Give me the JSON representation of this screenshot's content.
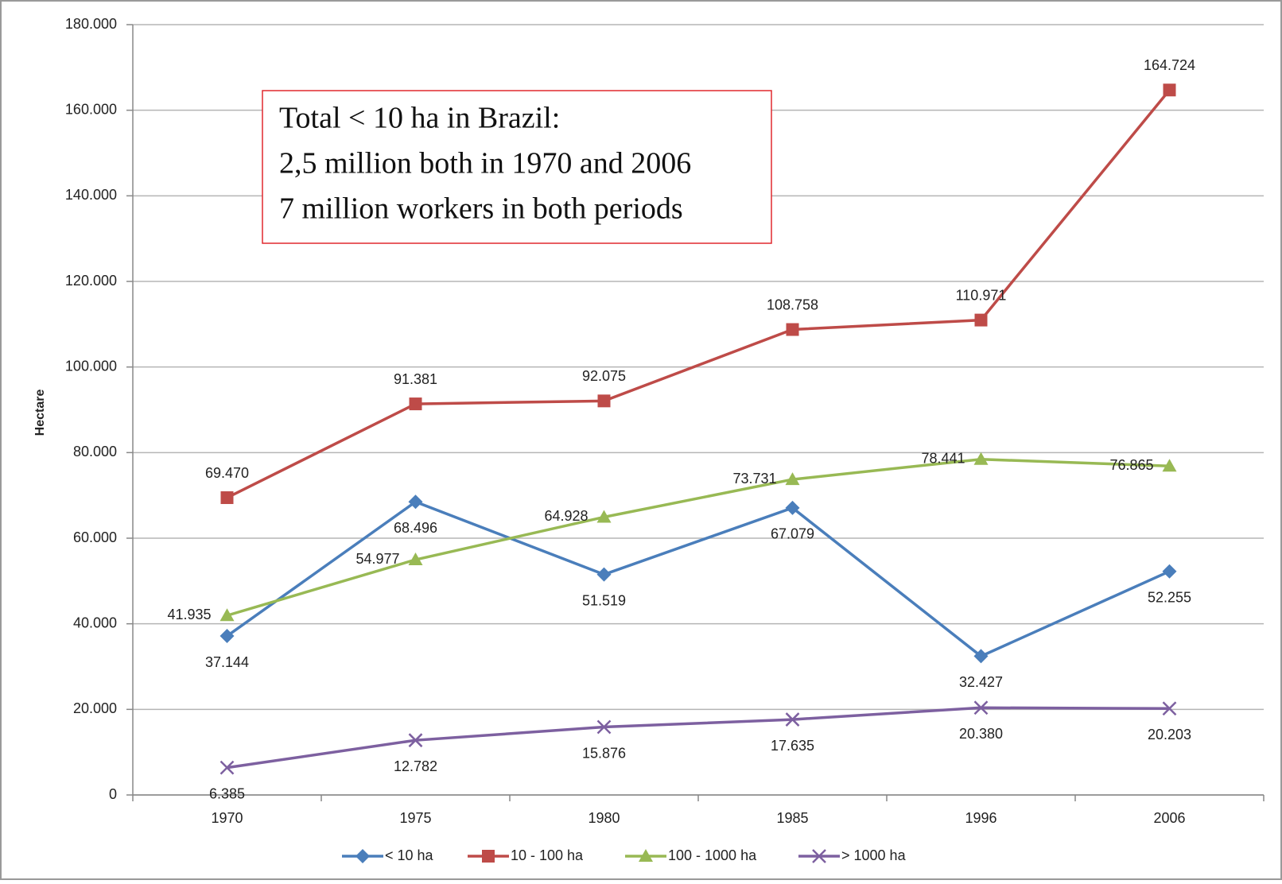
{
  "chart_data": {
    "type": "line",
    "y_label": "Hectare",
    "annotation": [
      "Total < 10 ha in Brazil:",
      "2,5 million both in 1970 and 2006",
      "7 million workers in both periods"
    ],
    "categories": [
      "1970",
      "1975",
      "1980",
      "1985",
      "1996",
      "2006"
    ],
    "series": [
      {
        "name": "< 10 ha",
        "color": "#4a7ebb",
        "marker": "diamond",
        "values": [
          37144,
          68496,
          51519,
          67079,
          32427,
          52255
        ],
        "value_labels": [
          "37.144",
          "68.496",
          "51.519",
          "67.079",
          "32.427",
          "52.255"
        ]
      },
      {
        "name": "10 - 100 ha",
        "color": "#be4b48",
        "marker": "square",
        "values": [
          69470,
          91381,
          92075,
          108758,
          110971,
          164724
        ],
        "value_labels": [
          "69.470",
          "91.381",
          "92.075",
          "108.758",
          "110.971",
          "164.724"
        ]
      },
      {
        "name": "100 - 1000 ha",
        "color": "#98b954",
        "marker": "triangle",
        "values": [
          41935,
          54977,
          64928,
          73731,
          78441,
          76865
        ],
        "value_labels": [
          "41.935",
          "54.977",
          "64.928",
          "73.731",
          "78.441",
          "76.865"
        ]
      },
      {
        "name": "> 1000 ha",
        "color": "#7d60a0",
        "marker": "x",
        "values": [
          6385,
          12782,
          15876,
          17635,
          20380,
          20203
        ],
        "value_labels": [
          "6.385",
          "12.782",
          "15.876",
          "17.635",
          "20.380",
          "20.203"
        ]
      }
    ],
    "ylim": [
      0,
      180000
    ],
    "yticks": [
      0,
      {
        "value": 20000,
        "label": "20.000"
      },
      {
        "value": 40000,
        "label": "40.000"
      },
      {
        "value": 60000,
        "label": "60.000"
      },
      {
        "value": 80000,
        "label": "80.000"
      },
      {
        "value": 100000,
        "label": "100.000"
      },
      {
        "value": 120000,
        "label": "120.000"
      },
      {
        "value": 140000,
        "label": "140.000"
      },
      {
        "value": 160000,
        "label": "160.000"
      },
      {
        "value": 180000,
        "label": "180.000"
      }
    ],
    "grid": true,
    "legend": "bottom"
  }
}
